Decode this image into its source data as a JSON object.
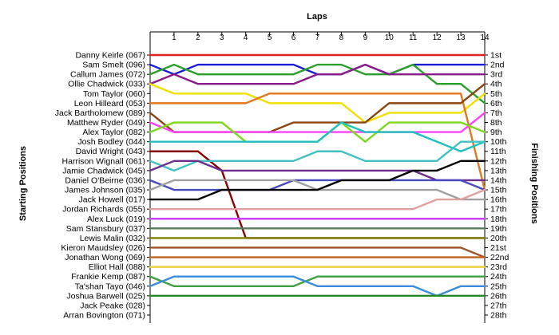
{
  "chart_data": {
    "type": "line",
    "title": "Laps",
    "ylabel_left": "Starting Positions",
    "ylabel_right": "Finishing Positions",
    "x_ticks": [
      1,
      2,
      3,
      4,
      5,
      6,
      7,
      8,
      9,
      10,
      11,
      12,
      13,
      14
    ],
    "xlim": [
      0,
      14
    ],
    "ylim": [
      1,
      28
    ],
    "grid": false,
    "starting_labels": [
      "Danny Keirle (067)",
      "Sam Smelt (096)",
      "Callum James (072)",
      "Ollie Chadwick (033)",
      "Tom Taylor (060)",
      "Leon Hilleard (053)",
      "Jack Bartholomew (089)",
      "Matthew Ryder (049)",
      "Alex Taylor (082)",
      "Josh Bodley (044)",
      "David Wright (043)",
      "Harrison Wignall (061)",
      "Jamie Chadwick (045)",
      "Daniel O'Beirne (036)",
      "James Johnson (035)",
      "Jack Howell (017)",
      "Jordan Richards (055)",
      "Alex Luck (019)",
      "Sam Stansbury (037)",
      "Lewis Malin (032)",
      "Kieron Maudsley (026)",
      "Jonathan Wong (069)",
      "Elliot Hall (088)",
      "Frankie Kemp (087)",
      "Ta'shan Tayo (046)",
      "Joshua Barwell (025)",
      "Jack Peake (028)",
      "Arran Bovington (071)"
    ],
    "finishing_labels": [
      "1st",
      "2nd",
      "3rd",
      "4th",
      "5th",
      "6th",
      "7th",
      "8th",
      "9th",
      "10th",
      "11th",
      "12th",
      "13th",
      "14th",
      "15th",
      "16th",
      "17th",
      "18th",
      "19th",
      "20th",
      "21st",
      "22nd",
      "23rd",
      "24th",
      "25th",
      "26th",
      "27th",
      "28th"
    ],
    "series": [
      {
        "color": "#e02020",
        "values": [
          1,
          1,
          1,
          1,
          1,
          1,
          1,
          1,
          1,
          1,
          1,
          1,
          1,
          1,
          1
        ]
      },
      {
        "color": "#1c1cd8",
        "values": [
          2,
          3,
          2,
          2,
          2,
          2,
          2,
          3,
          3,
          2,
          3,
          2,
          2,
          2,
          2
        ]
      },
      {
        "color": "#2aa02a",
        "values": [
          3,
          2,
          3,
          3,
          3,
          3,
          3,
          2,
          2,
          3,
          3,
          2,
          4,
          4,
          6
        ]
      },
      {
        "color": "#8b1a8b",
        "values": [
          4,
          3,
          4,
          4,
          4,
          4,
          4,
          3,
          3,
          2,
          3,
          3,
          3,
          3,
          3
        ]
      },
      {
        "color": "#f0e000",
        "values": [
          4,
          5,
          5,
          5,
          5,
          6,
          6,
          6,
          6,
          8,
          7,
          7,
          7,
          7,
          5
        ]
      },
      {
        "color": "#e07820",
        "values": [
          6,
          6,
          6,
          6,
          6,
          5,
          5,
          5,
          5,
          5,
          5,
          5,
          5,
          5,
          15
        ]
      },
      {
        "color": "#8b4513",
        "values": [
          7,
          9,
          9,
          9,
          9,
          9,
          8,
          8,
          8,
          8,
          6,
          6,
          6,
          6,
          4
        ]
      },
      {
        "color": "#ff40ff",
        "values": [
          8,
          9,
          9,
          9,
          9,
          9,
          9,
          9,
          9,
          9,
          9,
          9,
          9,
          9,
          7
        ]
      },
      {
        "color": "#7cd81c",
        "values": [
          9,
          8,
          8,
          8,
          10,
          10,
          10,
          10,
          8,
          10,
          8,
          8,
          8,
          8,
          9
        ]
      },
      {
        "color": "#20c0c0",
        "values": [
          10,
          10,
          10,
          10,
          10,
          10,
          10,
          10,
          8,
          9,
          9,
          9,
          10,
          11,
          10
        ]
      },
      {
        "color": "#8b0000",
        "values": [
          11,
          11,
          11,
          13,
          20,
          20,
          20,
          20,
          20,
          20,
          20,
          20,
          20,
          20,
          20
        ]
      },
      {
        "color": "#40c0c0",
        "values": [
          12,
          13,
          12,
          12,
          12,
          12,
          12,
          11,
          11,
          12,
          12,
          12,
          12,
          10,
          10
        ]
      },
      {
        "color": "#6b2e8b",
        "values": [
          13,
          12,
          12,
          13,
          13,
          13,
          13,
          13,
          13,
          13,
          13,
          13,
          14,
          14,
          14
        ]
      },
      {
        "color": "#4a4ac0",
        "values": [
          14,
          15,
          15,
          15,
          15,
          15,
          14,
          14,
          14,
          14,
          14,
          14,
          14,
          14,
          15
        ]
      },
      {
        "color": "#a0a0a0",
        "values": [
          15,
          14,
          14,
          14,
          14,
          14,
          14,
          15,
          15,
          15,
          15,
          15,
          15,
          16,
          16
        ]
      },
      {
        "color": "#000000",
        "values": [
          16,
          16,
          16,
          15,
          15,
          15,
          15,
          15,
          14,
          14,
          14,
          13,
          13,
          12,
          12
        ]
      },
      {
        "color": "#e0a0a0",
        "values": [
          17,
          17,
          17,
          17,
          17,
          17,
          17,
          17,
          17,
          17,
          17,
          17,
          16,
          16,
          15
        ]
      },
      {
        "color": "#cc40ff",
        "values": [
          18,
          18,
          18,
          18,
          18,
          18,
          18,
          18,
          18,
          18,
          18,
          18,
          18,
          18,
          18
        ]
      },
      {
        "color": "#5a7a5a",
        "values": [
          19,
          19,
          19,
          19,
          19,
          19,
          19,
          19,
          19,
          19,
          19,
          19,
          19,
          19,
          19
        ]
      },
      {
        "color": "#808000",
        "values": [
          20,
          20,
          20,
          20,
          20,
          20,
          20,
          20,
          20,
          20,
          20,
          20,
          20,
          20,
          20
        ]
      },
      {
        "color": "#a0522d",
        "values": [
          21,
          21,
          21,
          21,
          21,
          21,
          21,
          21,
          21,
          21,
          21,
          21,
          21,
          21,
          22
        ]
      },
      {
        "color": "#c06020",
        "values": [
          22,
          22,
          22,
          22,
          22,
          22,
          22,
          22,
          22,
          22,
          22,
          22,
          22,
          22,
          22
        ]
      },
      {
        "color": "#e8d040",
        "values": [
          23,
          23,
          23,
          23,
          23,
          23,
          23,
          23,
          23,
          23,
          23,
          23,
          23,
          23,
          23
        ]
      },
      {
        "color": "#40a040",
        "values": [
          24,
          25,
          25,
          25,
          25,
          25,
          25,
          24,
          24,
          24,
          24,
          24,
          24,
          24,
          24
        ]
      },
      {
        "color": "#3c8cdc",
        "values": [
          25,
          24,
          24,
          24,
          24,
          24,
          24,
          25,
          25,
          25,
          25,
          25,
          26,
          25,
          25
        ]
      },
      {
        "color": "#228b22",
        "values": [
          26,
          26,
          26,
          26,
          26,
          26,
          26,
          26,
          26,
          26,
          26,
          26,
          26,
          26,
          26
        ]
      }
    ]
  }
}
